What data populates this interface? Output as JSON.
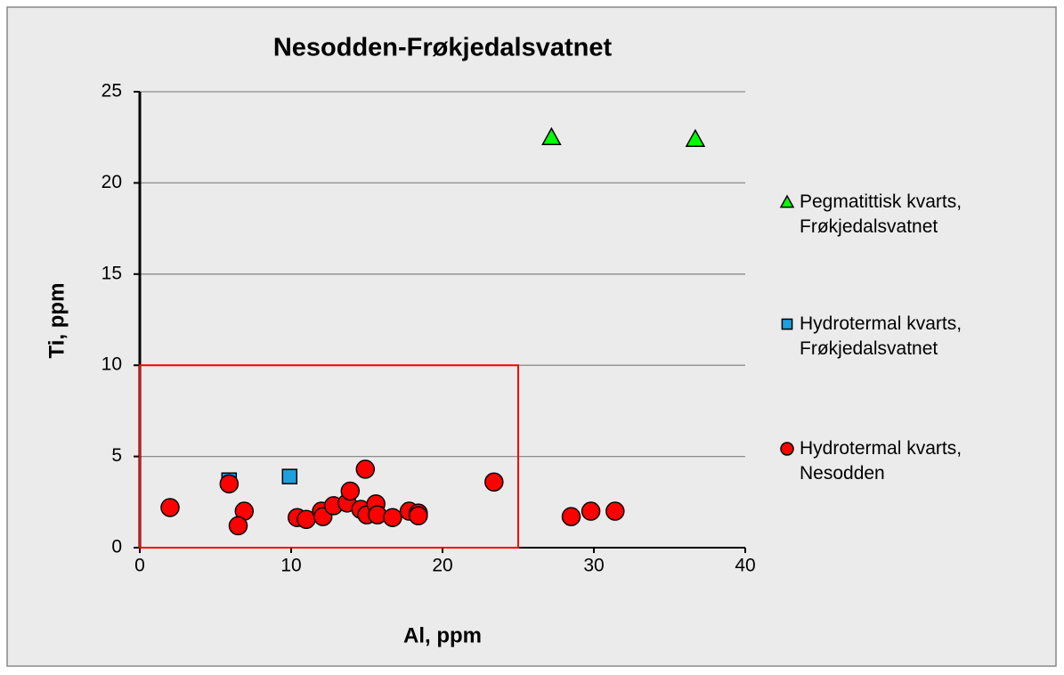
{
  "chart_data": {
    "type": "scatter",
    "title": "Nesodden-Frøkjedalsvatnet",
    "x_label": "Al, ppm",
    "y_label": "Ti, ppm",
    "xlim": [
      0,
      40
    ],
    "xticks": [
      0,
      10,
      20,
      30,
      40
    ],
    "ylim": [
      0,
      25
    ],
    "yticks": [
      0,
      5,
      10,
      15,
      20,
      25
    ],
    "grid": true,
    "legend": "right",
    "series": [
      {
        "name": "Pegmatittisk kvarts, Frøkjedalsvatnet",
        "color": "#00ff00",
        "marker": "triangle",
        "x": [
          27.2,
          36.7
        ],
        "values": [
          22.5,
          22.4
        ]
      },
      {
        "name": "Hydrotermal kvarts, Frøkjedalsvatnet",
        "color": "#1ca0e0",
        "marker": "square",
        "x": [
          5.9,
          9.9
        ],
        "values": [
          3.7,
          3.9
        ]
      },
      {
        "name": "Hydrotermal kvarts, Nesodden",
        "color": "#ff0000",
        "marker": "circle",
        "x": [
          2.0,
          5.9,
          6.9,
          6.5,
          10.4,
          11.0,
          12.0,
          12.1,
          12.8,
          13.7,
          13.9,
          14.6,
          14.9,
          15.0,
          15.6,
          15.7,
          16.7,
          17.8,
          18.4,
          18.4,
          23.4,
          28.5,
          29.8,
          31.4
        ],
        "values": [
          2.2,
          3.5,
          2.0,
          1.2,
          1.65,
          1.55,
          2.0,
          1.7,
          2.3,
          2.45,
          3.1,
          2.1,
          4.3,
          1.8,
          2.4,
          1.8,
          1.65,
          2.0,
          1.9,
          1.75,
          3.6,
          1.7,
          2.0,
          2.0
        ]
      }
    ],
    "region": {
      "xlim": [
        0,
        25
      ],
      "ylim": [
        0,
        10
      ],
      "color": "#ff0000"
    }
  }
}
